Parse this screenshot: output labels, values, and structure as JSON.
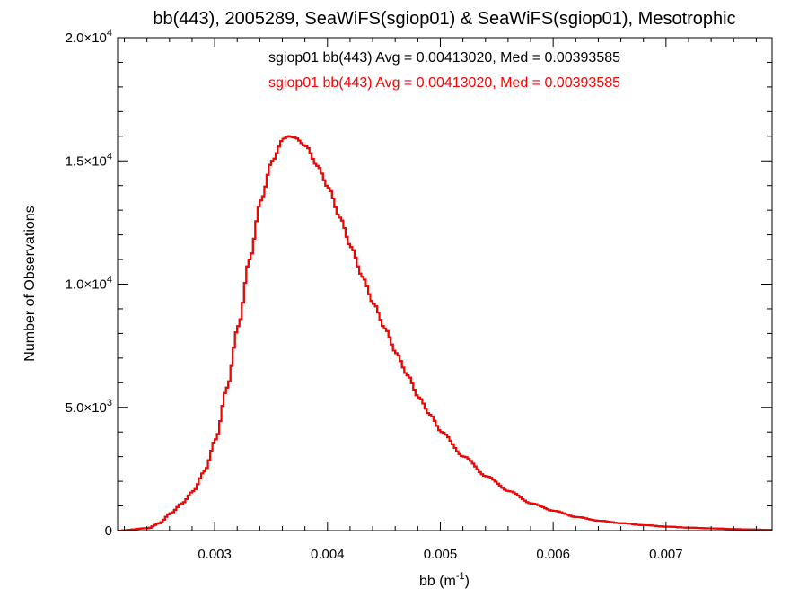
{
  "chart_data": {
    "type": "line",
    "title": "bb(443), 2005289, SeaWiFS(sgiop01) & SeaWiFS(sgiop01), Mesotrophic",
    "xlabel": "bb (m",
    "xlabel_sup": "-1",
    "xlabel_suffix": ")",
    "ylabel": "Number of Observations",
    "xlim": [
      0.00214,
      0.00794
    ],
    "ylim": [
      0,
      20000
    ],
    "x_ticks": [
      {
        "value": 0.003,
        "label": "0.003"
      },
      {
        "value": 0.004,
        "label": "0.004"
      },
      {
        "value": 0.005,
        "label": "0.005"
      },
      {
        "value": 0.006,
        "label": "0.006"
      },
      {
        "value": 0.007,
        "label": "0.007"
      }
    ],
    "y_ticks": [
      {
        "value": 0,
        "mant": "0",
        "exp": ""
      },
      {
        "value": 5000,
        "mant": "5.0×10",
        "exp": "3"
      },
      {
        "value": 10000,
        "mant": "1.0×10",
        "exp": "4"
      },
      {
        "value": 15000,
        "mant": "1.5×10",
        "exp": "4"
      },
      {
        "value": 20000,
        "mant": "2.0×10",
        "exp": "4"
      }
    ],
    "grid": false,
    "step_histogram": true,
    "series": [
      {
        "name": "sgiop01 bb(443) Avg = 0.00413020, Med = 0.00393585",
        "color": "#000000",
        "x": [
          0.00214,
          0.0024,
          0.0025,
          0.0026,
          0.0027,
          0.0028,
          0.0029,
          0.003,
          0.0031,
          0.0032,
          0.0033,
          0.0034,
          0.0035,
          0.0036,
          0.00365,
          0.0037,
          0.0038,
          0.0039,
          0.004,
          0.0041,
          0.0042,
          0.0043,
          0.0044,
          0.0045,
          0.0046,
          0.0047,
          0.0048,
          0.0049,
          0.005,
          0.0052,
          0.0054,
          0.0056,
          0.0058,
          0.006,
          0.0062,
          0.0064,
          0.0066,
          0.0068,
          0.007,
          0.0072,
          0.0074,
          0.0076,
          0.0078,
          0.00794
        ],
        "y": [
          0,
          100,
          300,
          700,
          1100,
          1600,
          2400,
          3700,
          5800,
          8300,
          11000,
          13400,
          15000,
          15900,
          16000,
          15950,
          15600,
          14800,
          13900,
          12700,
          11500,
          10300,
          9200,
          8200,
          7200,
          6300,
          5400,
          4700,
          4000,
          3000,
          2200,
          1600,
          1100,
          800,
          550,
          400,
          300,
          220,
          160,
          120,
          90,
          60,
          40,
          25
        ]
      },
      {
        "name": "sgiop01 bb(443) Avg = 0.00413020, Med = 0.00393585",
        "color": "#ff0000",
        "x": [
          0.00214,
          0.0024,
          0.0025,
          0.0026,
          0.0027,
          0.0028,
          0.0029,
          0.003,
          0.0031,
          0.0032,
          0.0033,
          0.0034,
          0.0035,
          0.0036,
          0.00365,
          0.0037,
          0.0038,
          0.0039,
          0.004,
          0.0041,
          0.0042,
          0.0043,
          0.0044,
          0.0045,
          0.0046,
          0.0047,
          0.0048,
          0.0049,
          0.005,
          0.0052,
          0.0054,
          0.0056,
          0.0058,
          0.006,
          0.0062,
          0.0064,
          0.0066,
          0.0068,
          0.007,
          0.0072,
          0.0074,
          0.0076,
          0.0078,
          0.00794
        ],
        "y": [
          0,
          100,
          300,
          700,
          1100,
          1600,
          2400,
          3700,
          5800,
          8300,
          11000,
          13400,
          15000,
          15900,
          16000,
          15950,
          15600,
          14800,
          13900,
          12700,
          11500,
          10300,
          9200,
          8200,
          7200,
          6300,
          5400,
          4700,
          4000,
          3000,
          2200,
          1600,
          1100,
          800,
          550,
          400,
          300,
          220,
          160,
          120,
          90,
          60,
          40,
          25
        ]
      }
    ]
  }
}
